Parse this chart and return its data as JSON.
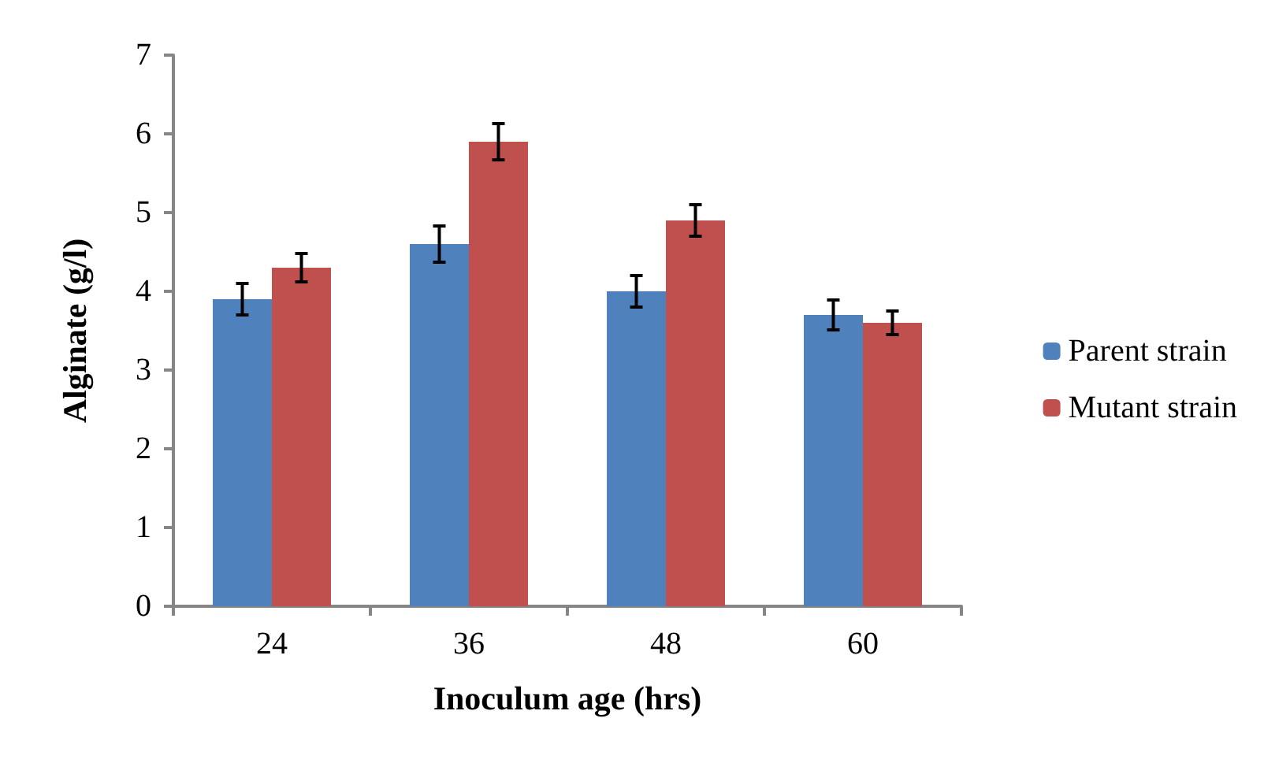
{
  "chart_data": {
    "type": "bar",
    "xlabel": "Inoculum age (hrs)",
    "ylabel": "Alginate (g/l)",
    "categories": [
      "24",
      "36",
      "48",
      "60"
    ],
    "series": [
      {
        "name": "Parent strain",
        "color": "#4f81bd",
        "values": [
          3.9,
          4.6,
          4.0,
          3.7
        ],
        "errors": [
          0.2,
          0.23,
          0.2,
          0.19
        ]
      },
      {
        "name": "Mutant strain",
        "color": "#c0504d",
        "values": [
          4.3,
          5.9,
          4.9,
          3.6
        ],
        "errors": [
          0.18,
          0.23,
          0.2,
          0.15
        ]
      }
    ],
    "ylim": [
      0,
      7
    ],
    "yticks": [
      0,
      1,
      2,
      3,
      4,
      5,
      6,
      7
    ],
    "grid": false,
    "legend": "right"
  }
}
